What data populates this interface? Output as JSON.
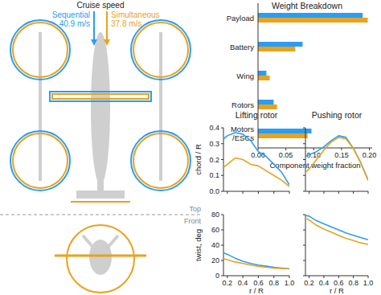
{
  "diagram": {
    "title": "Cruise speed",
    "configs": [
      {
        "name": "Sequential",
        "speed": "40.9 m/s",
        "color": "#2a9df4"
      },
      {
        "name": "Simultaneous",
        "speed": "37.8 m/s",
        "color": "#e8a21e"
      }
    ],
    "views": [
      "Top",
      "Front"
    ]
  },
  "chart_data": [
    {
      "type": "bar",
      "orientation": "horizontal",
      "title": "Weight Breakdown",
      "xlabel": "Component weight fraction",
      "categories": [
        "Payload",
        "Battery",
        "Wing",
        "Rotors",
        "Motors /ESCs"
      ],
      "series": [
        {
          "color": "#2a9df4",
          "values": [
            0.188,
            0.08,
            0.015,
            0.028,
            0.096
          ]
        },
        {
          "color": "#e8a21e",
          "values": [
            0.197,
            0.067,
            0.021,
            0.034,
            0.089
          ]
        }
      ],
      "xlim": [
        0,
        0.205
      ],
      "xticks": [
        {
          "value": 0,
          "label": "0.00"
        },
        {
          "value": 0.05,
          "label": "0.05"
        },
        {
          "value": 0.1,
          "label": "0.10"
        },
        {
          "value": 0.15,
          "label": "0.15"
        },
        {
          "value": 0.2,
          "label": "0.20"
        }
      ]
    },
    {
      "type": "line",
      "title": "Lifting rotor",
      "ylabel": "chord / R",
      "x": [
        0.15,
        0.2,
        0.3,
        0.4,
        0.5,
        0.6,
        0.7,
        0.8,
        0.9,
        1.0
      ],
      "series": [
        {
          "color": "#2a9df4",
          "values": [
            0.33,
            0.35,
            0.37,
            0.36,
            0.32,
            0.25,
            0.22,
            0.17,
            0.12,
            0.04
          ]
        },
        {
          "color": "#e8a21e",
          "values": [
            0.15,
            0.17,
            0.21,
            0.2,
            0.17,
            0.16,
            0.13,
            0.1,
            0.07,
            0.03
          ]
        }
      ],
      "xlim": [
        0.15,
        1.0
      ],
      "xticks": [
        0.2,
        0.4,
        0.6,
        0.8,
        {
          "value": 1,
          "label": "1.0"
        }
      ],
      "ylim": [
        0,
        0.4
      ],
      "yticks": [
        {
          "value": 0,
          "label": "0.0"
        },
        0.1,
        0.2,
        0.3,
        0.4
      ],
      "tick_labels": "y"
    },
    {
      "type": "line",
      "title": "Pushing rotor",
      "x": [
        0.15,
        0.2,
        0.3,
        0.4,
        0.5,
        0.6,
        0.7,
        0.8,
        0.9,
        1.0
      ],
      "series": [
        {
          "color": "#2a9df4",
          "values": [
            0.22,
            0.23,
            0.25,
            0.28,
            0.32,
            0.35,
            0.34,
            0.27,
            0.18,
            0.07
          ]
        },
        {
          "color": "#e8a21e",
          "values": [
            0.12,
            0.14,
            0.2,
            0.26,
            0.31,
            0.34,
            0.33,
            0.27,
            0.18,
            0.07
          ]
        }
      ],
      "xlim": [
        0.15,
        1.0
      ],
      "xticks": [
        0.2,
        0.4,
        0.6,
        0.8,
        {
          "value": 1,
          "label": "1.0"
        }
      ],
      "ylim": [
        0,
        0.4
      ],
      "yticks": [
        {
          "value": 0,
          "label": "0.0"
        },
        0.1,
        0.2,
        0.3,
        0.4
      ],
      "tick_labels": false
    },
    {
      "type": "line",
      "ylabel": "twist, deg",
      "xlabel": "r / R",
      "x": [
        0.15,
        0.2,
        0.3,
        0.4,
        0.5,
        0.6,
        0.7,
        0.8,
        0.9,
        1.0
      ],
      "series": [
        {
          "color": "#2a9df4",
          "values": [
            30,
            28,
            23,
            19,
            16,
            14,
            12.5,
            11,
            10,
            9
          ]
        },
        {
          "color": "#e8a21e",
          "values": [
            22,
            21,
            18,
            16,
            14,
            12.5,
            11,
            10,
            9.5,
            9
          ]
        }
      ],
      "xlim": [
        0.15,
        1.0
      ],
      "xticks": [
        0.2,
        0.4,
        0.6,
        0.8,
        {
          "value": 1,
          "label": "1.0"
        }
      ],
      "ylim": [
        0,
        80
      ],
      "yticks": [
        0,
        20,
        40,
        60,
        80
      ],
      "tick_labels": true
    },
    {
      "type": "line",
      "xlabel": "r / R",
      "x": [
        0.15,
        0.2,
        0.3,
        0.4,
        0.5,
        0.6,
        0.7,
        0.8,
        0.9,
        1.0
      ],
      "series": [
        {
          "color": "#2a9df4",
          "values": [
            79,
            78,
            72,
            68,
            64,
            60,
            56,
            53,
            50,
            47
          ]
        },
        {
          "color": "#e8a21e",
          "values": [
            75,
            73,
            66,
            61,
            57,
            53,
            49,
            46,
            43,
            41
          ]
        }
      ],
      "xlim": [
        0.15,
        1.0
      ],
      "xticks": [
        0.2,
        0.4,
        0.6,
        0.8,
        {
          "value": 1,
          "label": "1.0"
        }
      ],
      "ylim": [
        0,
        80
      ],
      "yticks": [
        0,
        20,
        40,
        60,
        80
      ],
      "tick_labels": "x"
    }
  ]
}
